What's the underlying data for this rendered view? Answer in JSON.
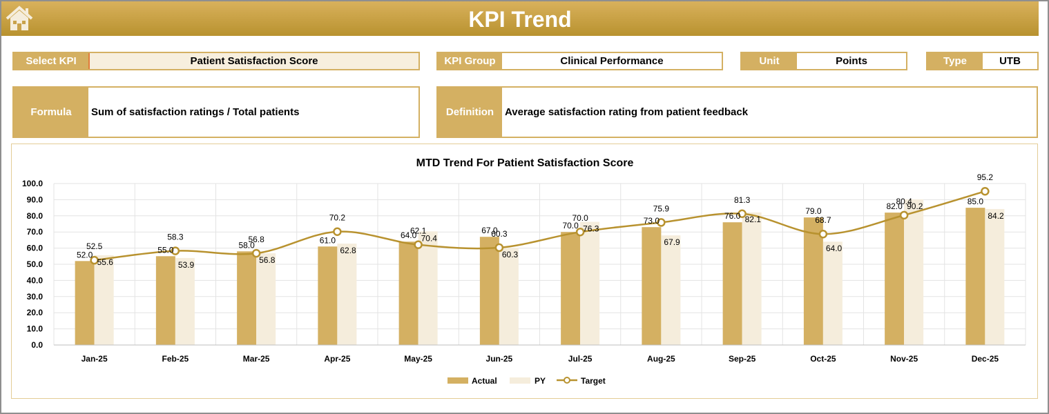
{
  "header": {
    "title": "KPI Trend",
    "home_icon": "home-icon"
  },
  "fields": {
    "select_kpi_label": "Select KPI",
    "select_kpi_value": "Patient Satisfaction Score",
    "kpi_group_label": "KPI Group",
    "kpi_group_value": "Clinical Performance",
    "unit_label": "Unit",
    "unit_value": "Points",
    "type_label": "Type",
    "type_value": "UTB",
    "formula_label": "Formula",
    "formula_value": "Sum of satisfaction ratings / Total patients",
    "definition_label": "Definition",
    "definition_value": "Average satisfaction rating from patient feedback"
  },
  "colors": {
    "actual": "#d4b062",
    "py": "#f5eddc",
    "target": "#b8922f"
  },
  "chart_data": {
    "type": "bar",
    "title": "MTD Trend For Patient Satisfaction Score",
    "categories": [
      "Jan-25",
      "Feb-25",
      "Mar-25",
      "Apr-25",
      "May-25",
      "Jun-25",
      "Jul-25",
      "Aug-25",
      "Sep-25",
      "Oct-25",
      "Nov-25",
      "Dec-25"
    ],
    "ylim": [
      0,
      100
    ],
    "yticks": [
      "0.0",
      "10.0",
      "20.0",
      "30.0",
      "40.0",
      "50.0",
      "60.0",
      "70.0",
      "80.0",
      "90.0",
      "100.0"
    ],
    "grid": true,
    "legend_placement": "bottom",
    "series": [
      {
        "name": "Actual",
        "type": "bar",
        "values": [
          52.0,
          55.0,
          58.0,
          61.0,
          64.0,
          67.0,
          70.0,
          73.0,
          76.0,
          79.0,
          82.0,
          85.0
        ]
      },
      {
        "name": "PY",
        "type": "bar",
        "values": [
          55.6,
          53.9,
          56.8,
          62.8,
          70.4,
          60.3,
          76.3,
          67.9,
          82.1,
          64.0,
          90.2,
          84.2
        ]
      },
      {
        "name": "Target",
        "type": "line",
        "values": [
          52.5,
          58.3,
          56.8,
          70.2,
          62.1,
          60.3,
          70.0,
          75.9,
          81.3,
          68.7,
          80.4,
          95.2
        ]
      }
    ]
  }
}
